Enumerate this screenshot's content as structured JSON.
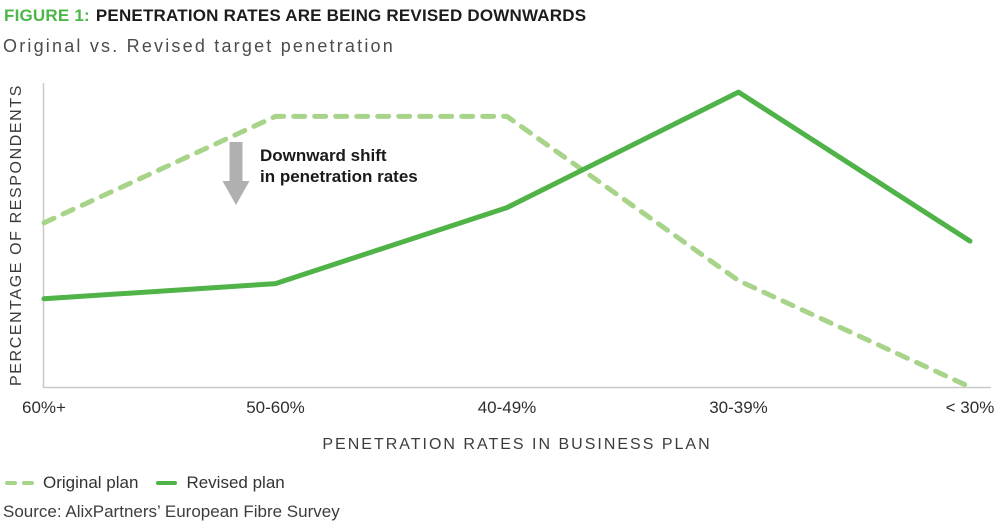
{
  "figure": {
    "title_prefix": "FIGURE 1:",
    "title": "PENETRATION RATES ARE BEING REVISED DOWNWARDS",
    "subtitle": "Original vs. Revised target penetration",
    "source": "Source: AlixPartners’ European Fibre Survey"
  },
  "annotation": {
    "line1": "Downward shift",
    "line2": "in penetration rates"
  },
  "colors": {
    "title_accent": "#4cb748",
    "original_line": "#a7d488",
    "revised_line": "#4fb348",
    "arrow": "#b0b0b0",
    "axis": "#c9c9c9"
  },
  "chart_data": {
    "type": "line",
    "categories": [
      "60%+",
      "50-60%",
      "40-49%",
      "30-39%",
      "< 30%"
    ],
    "series": [
      {
        "name": "Original plan",
        "style": "dashed",
        "color": "#a7d488",
        "values": [
          54,
          89,
          89,
          35,
          0
        ]
      },
      {
        "name": "Revised plan",
        "style": "solid",
        "color": "#4fb348",
        "values": [
          29,
          34,
          59,
          97,
          48
        ]
      }
    ],
    "title": "Original vs. Revised target penetration",
    "xlabel": "PENETRATION RATES IN BUSINESS PLAN",
    "ylabel": "PERCENTAGE OF RESPONDENTS",
    "ylim": [
      0,
      100
    ],
    "grid": false,
    "legend_position": "bottom-left",
    "annotation_text": "Downward shift in penetration rates"
  }
}
